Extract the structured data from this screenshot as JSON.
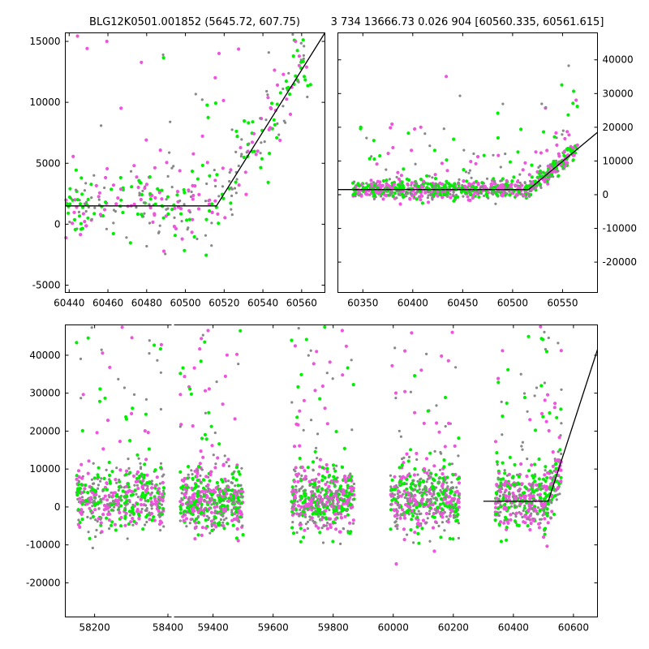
{
  "chart_data": [
    {
      "type": "scatter",
      "title": "BLG12K0501.001852 (5645.72, 607.75)",
      "xlim": [
        60438,
        60572
      ],
      "ylim": [
        -5600,
        15700
      ],
      "x_ticks": [
        60440,
        60460,
        60480,
        60500,
        60520,
        60540,
        60560
      ],
      "y_ticks": [
        -5000,
        0,
        5000,
        10000,
        15000
      ],
      "y_axis_side": "left",
      "series_colors": {
        "green": "#00ee00",
        "magenta": "#ee55dd",
        "gray": "#888888"
      },
      "point_cloud": {
        "x_range": [
          60438,
          60565
        ],
        "base_level": 1500,
        "spread": 3500
      },
      "model": {
        "x": [
          60438,
          60516,
          60572
        ],
        "y": [
          1500,
          1500,
          15700
        ]
      }
    },
    {
      "type": "scatter",
      "title": "3 734 13666.73 0.026 904 [60560.335, 60561.615]",
      "xlim": [
        60325,
        60585
      ],
      "ylim": [
        -29000,
        48000
      ],
      "x_ticks": [
        60350,
        60400,
        60450,
        60500,
        60550
      ],
      "y_ticks": [
        -20000,
        -10000,
        0,
        10000,
        20000,
        30000,
        40000
      ],
      "y_axis_side": "right",
      "series_colors": {
        "green": "#00ee00",
        "magenta": "#ee55dd",
        "gray": "#888888"
      },
      "point_cloud": {
        "x_range": [
          60340,
          60565
        ],
        "base_level": 1500,
        "spread": 3000
      },
      "model": {
        "x": [
          60325,
          60516,
          60585
        ],
        "y": [
          1500,
          1500,
          18500
        ]
      }
    },
    {
      "type": "scatter",
      "title": "",
      "xlim": [
        58120,
        60680
      ],
      "ylim": [
        -29000,
        48000
      ],
      "x_break": [
        58410,
        59270
      ],
      "x_ticks": [
        58200,
        58400,
        59400,
        59600,
        59800,
        60000,
        60200,
        60400,
        60600
      ],
      "y_ticks": [
        -20000,
        -10000,
        0,
        10000,
        20000,
        30000,
        40000
      ],
      "y_axis_side": "left",
      "series_colors": {
        "green": "#00ee00",
        "magenta": "#ee55dd",
        "gray": "#888888"
      },
      "seasons": [
        [
          58150,
          58390
        ],
        [
          59290,
          59500
        ],
        [
          59660,
          59870
        ],
        [
          59990,
          60220
        ],
        [
          60340,
          60560
        ]
      ],
      "model": {
        "x": [
          60300,
          60516,
          60680
        ],
        "y": [
          1500,
          1500,
          41500
        ]
      }
    }
  ]
}
